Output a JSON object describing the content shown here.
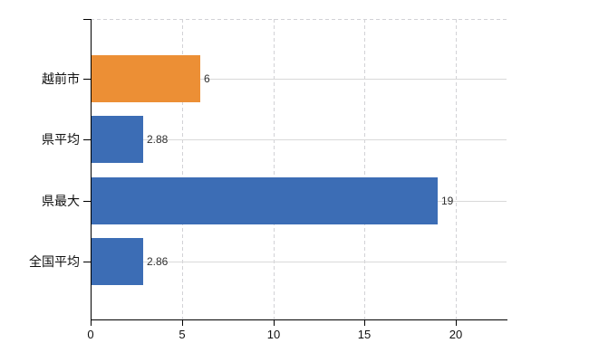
{
  "chart_data": {
    "type": "bar",
    "orientation": "horizontal",
    "title": "",
    "categories": [
      "越前市",
      "県平均",
      "県最大",
      "全国平均"
    ],
    "values": [
      6,
      2.88,
      19,
      2.86
    ],
    "value_labels": [
      "6",
      "2.88",
      "19",
      "2.86"
    ],
    "bar_colors": [
      "#EC8F35",
      "#3C6DB5",
      "#3C6DB5",
      "#3C6DB5"
    ],
    "x_ticks": [
      0,
      5,
      10,
      15,
      20
    ],
    "x_tick_labels": [
      "0",
      "5",
      "10",
      "15",
      "20"
    ],
    "xlim": [
      0,
      22.8
    ],
    "ylabel": "",
    "xlabel": "",
    "legend": "none",
    "grid": "on",
    "colors": {
      "axis": "#000000",
      "gridline_solid": "#D9D9D9",
      "gridline_dashed": "#D2D2D6",
      "text": "#111111",
      "value_text": "#303030",
      "background": "#FFFFFF"
    }
  }
}
